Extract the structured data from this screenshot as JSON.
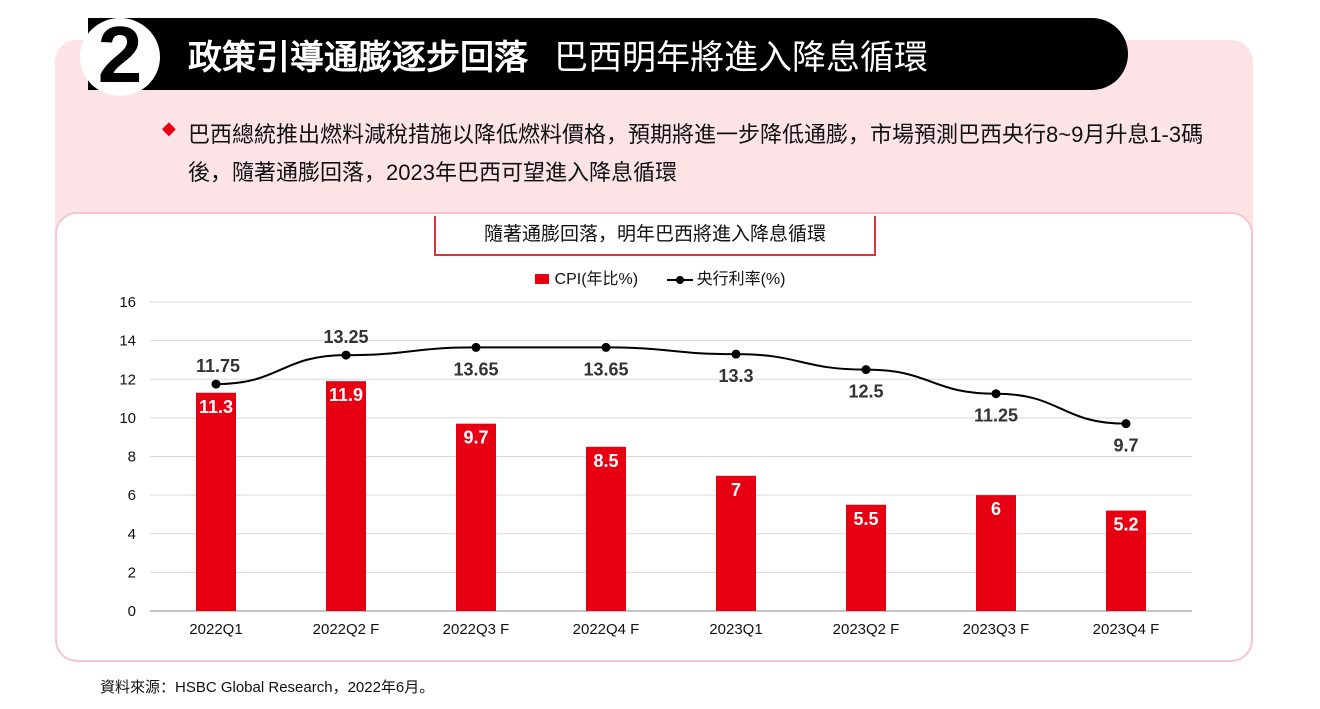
{
  "header": {
    "number": "2",
    "title_bold": "政策引導通膨逐步回落",
    "title_light": "巴西明年將進入降息循環"
  },
  "description": "巴西總統推出燃料減稅措施以降低燃料價格，預期將進一步降低通膨，市場預測巴西央行8~9月升息1-3碼後，隨著通膨回落，2023年巴西可望進入降息循環",
  "source": "資料來源：HSBC Global Research，2022年6月。",
  "colors": {
    "bar": "#e60012",
    "line": "#000000",
    "accent_pink": "#fbe3e6"
  },
  "chart_data": {
    "type": "bar+line",
    "title": "隨著通膨回落，明年巴西將進入降息循環",
    "categories": [
      "2022Q1",
      "2022Q2 F",
      "2022Q3 F",
      "2022Q4 F",
      "2023Q1",
      "2023Q2 F",
      "2023Q3 F",
      "2023Q4 F"
    ],
    "series": [
      {
        "name": "CPI(年比%)",
        "type": "bar",
        "values": [
          11.3,
          11.9,
          9.7,
          8.5,
          7,
          5.5,
          6,
          5.2
        ]
      },
      {
        "name": "央行利率(%)",
        "type": "line",
        "values": [
          11.75,
          13.25,
          13.65,
          13.65,
          13.3,
          12.5,
          11.25,
          9.7
        ]
      }
    ],
    "ylim": [
      0,
      16
    ],
    "yticks": [
      0,
      2,
      4,
      6,
      8,
      10,
      12,
      14,
      16
    ],
    "grid": true,
    "legend": "top"
  }
}
